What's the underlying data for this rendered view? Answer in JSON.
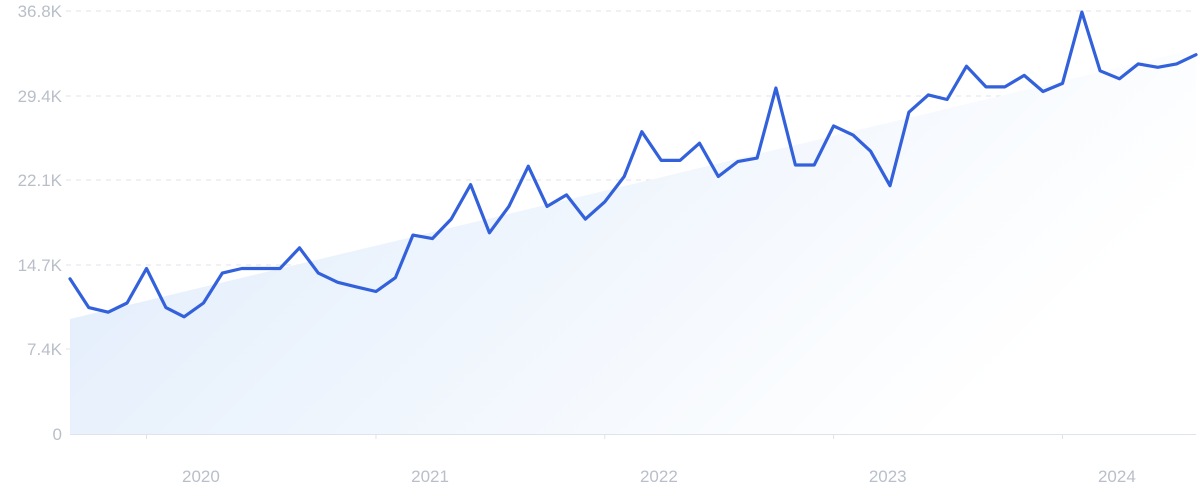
{
  "chart_data": {
    "type": "line",
    "title": "",
    "xlabel": "",
    "ylabel": "",
    "y_ticks": [
      "0",
      "7.4K",
      "14.7K",
      "22.1K",
      "29.4K",
      "36.8K"
    ],
    "y_tick_values": [
      0,
      7400,
      14700,
      22100,
      29400,
      36800
    ],
    "ylim": [
      0,
      36800
    ],
    "x_ticks": [
      "2020",
      "2021",
      "2022",
      "2023",
      "2024"
    ],
    "x_tick_dates": [
      "2020-01-01",
      "2021-01-01",
      "2022-01-01",
      "2023-01-01",
      "2024-01-01"
    ],
    "xlim": [
      "2019-09-01",
      "2024-08-01"
    ],
    "grid": "horizontal-dashed",
    "colors": {
      "line": "#3361dc",
      "area_start": "#deebfb",
      "area_end": "#ffffff",
      "grid": "#dfe3ea",
      "tick_text": "#b9bfc9"
    },
    "trend_area": {
      "start": [
        "2019-09-01",
        10000
      ],
      "end": [
        "2024-08-01",
        33500
      ]
    },
    "series": [
      {
        "x": [
          "2019-09-01",
          "2019-10-01",
          "2019-11-01",
          "2019-12-01",
          "2020-01-01",
          "2020-02-01",
          "2020-03-01",
          "2020-04-01",
          "2020-05-01",
          "2020-06-01",
          "2020-07-01",
          "2020-08-01",
          "2020-09-01",
          "2020-10-01",
          "2020-11-01",
          "2020-12-01",
          "2021-01-01",
          "2021-02-01",
          "2021-03-01",
          "2021-04-01",
          "2021-05-01",
          "2021-06-01",
          "2021-07-01",
          "2021-08-01",
          "2021-09-01",
          "2021-10-01",
          "2021-11-01",
          "2021-12-01",
          "2022-01-01",
          "2022-02-01",
          "2022-03-01",
          "2022-04-01",
          "2022-05-01",
          "2022-06-01",
          "2022-07-01",
          "2022-08-01",
          "2022-09-01",
          "2022-10-01",
          "2022-11-01",
          "2022-12-01",
          "2023-01-01",
          "2023-02-01",
          "2023-03-01",
          "2023-04-01",
          "2023-05-01",
          "2023-06-01",
          "2023-07-01",
          "2023-08-01",
          "2023-09-01",
          "2023-10-01",
          "2023-11-01",
          "2023-12-01",
          "2024-01-01",
          "2024-02-01",
          "2024-03-01",
          "2024-04-01",
          "2024-05-01",
          "2024-06-01",
          "2024-07-01",
          "2024-08-01"
        ],
        "values": [
          13500,
          11000,
          10600,
          11400,
          14400,
          11000,
          10200,
          11400,
          14000,
          14400,
          14400,
          14400,
          16200,
          14000,
          13200,
          12800,
          12400,
          13600,
          17300,
          17000,
          18700,
          21700,
          17500,
          19800,
          23300,
          19800,
          20800,
          18700,
          20200,
          22400,
          26300,
          23800,
          23800,
          25300,
          22400,
          23700,
          24000,
          30100,
          23400,
          23400,
          26800,
          26000,
          24600,
          21600,
          28000,
          29500,
          29100,
          32000,
          30200,
          30200,
          31200,
          29800,
          30500,
          36700,
          31600,
          30900,
          32200,
          31900,
          32200,
          33000
        ]
      }
    ]
  }
}
